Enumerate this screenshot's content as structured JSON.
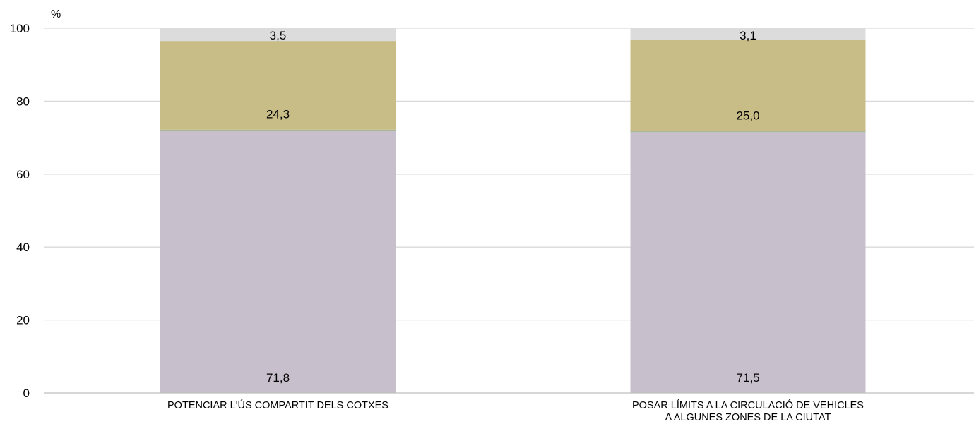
{
  "chart_data": {
    "type": "bar",
    "stacked": true,
    "unit_label": "%",
    "categories": [
      [
        "POTENCIAR L'ÚS COMPARTIT DELS COTXES"
      ],
      [
        "POSAR LÍMITS A LA CIRCULACIÓ DE VEHICLES",
        "A ALGUNES ZONES DE LA CIUTAT"
      ]
    ],
    "series": [
      {
        "values": [
          71.8,
          71.5
        ],
        "labels": [
          "71,8",
          "71,5"
        ],
        "color": "#c7bfcc"
      },
      {
        "values": [
          0.4,
          0.4
        ],
        "labels": [
          "",
          ""
        ],
        "color": "#a8b79a"
      },
      {
        "values": [
          24.3,
          25.0
        ],
        "labels": [
          "24,3",
          "25,0"
        ],
        "color": "#c8bd87"
      },
      {
        "values": [
          3.5,
          3.1
        ],
        "labels": [
          "3,5",
          "3,1"
        ],
        "color": "#dcdcdc"
      }
    ],
    "ylim": [
      0,
      100
    ],
    "yticks": [
      "0",
      "20",
      "40",
      "60",
      "80",
      "100"
    ],
    "ytick_values": [
      0,
      20,
      40,
      60,
      80,
      100
    ],
    "grid": true,
    "gridline_color": "#d9d9d9",
    "axis_color": "#bfbfbf"
  }
}
